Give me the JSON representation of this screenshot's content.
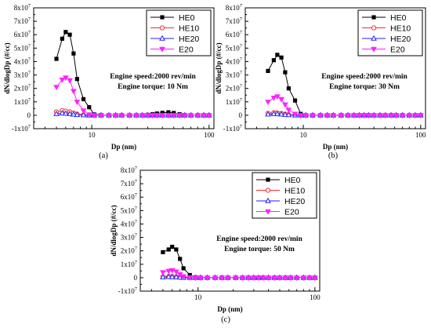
{
  "chart_data": [
    {
      "type": "line",
      "label": "(a)",
      "annotation": [
        "Engine speed:2000 rev/min",
        "Engine torque: 10 Nm"
      ],
      "xlabel": "Dp (nm)",
      "ylabel": "dN/dlogDp (#/cc)",
      "xscale": "log",
      "xlim": [
        3.2,
        110
      ],
      "ylim": [
        -10000000,
        80000000
      ],
      "xticks": [
        {
          "value": 10,
          "label": "10"
        },
        {
          "value": 100,
          "label": "100"
        }
      ],
      "yticks": [
        {
          "mant": "-1x10",
          "exp": "7",
          "value": -10000000
        },
        {
          "mant": "0",
          "exp": "",
          "value": 0
        },
        {
          "mant": "1x10",
          "exp": "7",
          "value": 10000000
        },
        {
          "mant": "2x10",
          "exp": "7",
          "value": 20000000
        },
        {
          "mant": "3x10",
          "exp": "7",
          "value": 30000000
        },
        {
          "mant": "4x10",
          "exp": "7",
          "value": 40000000
        },
        {
          "mant": "5x10",
          "exp": "7",
          "value": 50000000
        },
        {
          "mant": "6x10",
          "exp": "7",
          "value": 60000000
        },
        {
          "mant": "7x10",
          "exp": "7",
          "value": 70000000
        },
        {
          "mant": "8x10",
          "exp": "7",
          "value": 80000000
        }
      ],
      "legend_position": "top-right",
      "series": [
        {
          "name": "HE0",
          "color": "#000000",
          "marker": "square",
          "x": [
            5.0,
            5.6,
            6.0,
            6.5,
            7.0,
            7.5,
            8.5,
            9.5,
            10.5,
            12,
            14,
            16,
            18,
            21,
            24,
            27,
            30,
            33,
            36,
            40,
            45,
            50,
            56,
            62,
            70,
            80,
            90,
            100
          ],
          "y": [
            42000000,
            57000000,
            62000000,
            60000000,
            46000000,
            27000000,
            12000000,
            6000000,
            600000,
            150000,
            0,
            0,
            0,
            0,
            0,
            0,
            300000,
            800000,
            1300000,
            1800000,
            2200000,
            1700000,
            800000,
            200000,
            0,
            0,
            0,
            0
          ]
        },
        {
          "name": "HE10",
          "color": "#ff2a2a",
          "marker": "circle",
          "x": [
            5.0,
            5.6,
            6.0,
            6.5,
            7.0,
            7.5,
            8.5,
            9.5,
            10.5,
            12,
            14,
            16,
            18,
            21,
            24,
            27,
            30,
            33,
            36,
            40,
            45,
            50,
            56,
            62,
            70,
            80,
            90,
            100
          ],
          "y": [
            2500000,
            3500000,
            3200000,
            2600000,
            1700000,
            900000,
            400000,
            100000,
            0,
            0,
            0,
            0,
            0,
            0,
            0,
            0,
            0,
            0,
            0,
            0,
            0,
            0,
            0,
            0,
            0,
            0,
            0,
            0
          ]
        },
        {
          "name": "HE20",
          "color": "#2222ff",
          "marker": "triangle-up",
          "x": [
            5.0,
            5.6,
            6.0,
            6.5,
            7.0,
            7.5,
            8.5,
            9.5,
            10.5,
            12,
            14,
            16,
            18,
            21,
            24,
            27,
            30,
            33,
            36,
            40,
            45,
            50,
            56,
            62,
            70,
            80,
            90,
            100
          ],
          "y": [
            1000000,
            1500000,
            1300000,
            1000000,
            600000,
            300000,
            100000,
            0,
            0,
            0,
            0,
            0,
            0,
            0,
            0,
            0,
            0,
            0,
            0,
            0,
            0,
            0,
            0,
            0,
            0,
            0,
            0,
            0
          ]
        },
        {
          "name": "E20",
          "color": "#ff22ff",
          "marker": "triangle-down",
          "x": [
            5.0,
            5.6,
            6.0,
            6.5,
            7.0,
            7.5,
            8.5,
            9.5,
            10.5,
            12,
            14,
            16,
            18,
            21,
            24,
            27,
            30,
            33,
            36,
            40,
            45,
            50,
            56,
            62,
            70,
            80,
            90,
            100
          ],
          "y": [
            21000000,
            26500000,
            28000000,
            26000000,
            18000000,
            10000000,
            3500000,
            500000,
            0,
            0,
            0,
            0,
            0,
            0,
            0,
            0,
            0,
            0,
            0,
            0,
            0,
            0,
            0,
            0,
            0,
            0,
            0,
            0
          ]
        }
      ]
    },
    {
      "type": "line",
      "label": "(b)",
      "annotation": [
        "Engine speed:2000 rev/min",
        "Engine torque: 30 Nm"
      ],
      "xlabel": "Dp (nm)",
      "ylabel": "dN/dlogDp (#/cc)",
      "xscale": "log",
      "xlim": [
        3.2,
        110
      ],
      "ylim": [
        -10000000,
        80000000
      ],
      "xticks": [
        {
          "value": 10,
          "label": "10"
        },
        {
          "value": 100,
          "label": "100"
        }
      ],
      "yticks": [
        {
          "mant": "-1x10",
          "exp": "7",
          "value": -10000000
        },
        {
          "mant": "0",
          "exp": "",
          "value": 0
        },
        {
          "mant": "1x10",
          "exp": "7",
          "value": 10000000
        },
        {
          "mant": "2x10",
          "exp": "7",
          "value": 20000000
        },
        {
          "mant": "3x10",
          "exp": "7",
          "value": 30000000
        },
        {
          "mant": "4x10",
          "exp": "7",
          "value": 40000000
        },
        {
          "mant": "5x10",
          "exp": "7",
          "value": 50000000
        },
        {
          "mant": "6x10",
          "exp": "7",
          "value": 60000000
        },
        {
          "mant": "7x10",
          "exp": "7",
          "value": 70000000
        },
        {
          "mant": "8x10",
          "exp": "7",
          "value": 80000000
        }
      ],
      "legend_position": "top-right",
      "series": [
        {
          "name": "HE0",
          "color": "#000000",
          "marker": "square",
          "x": [
            5.0,
            5.6,
            6.0,
            6.5,
            7.0,
            7.5,
            8.5,
            9.5,
            10.5,
            12,
            14,
            16,
            18,
            21,
            24,
            27,
            30,
            33,
            36,
            40,
            45,
            50,
            56,
            62,
            70,
            80,
            90,
            100
          ],
          "y": [
            33000000,
            41000000,
            45000000,
            43000000,
            32000000,
            20000000,
            11000000,
            1000000,
            0,
            0,
            0,
            0,
            0,
            0,
            0,
            0,
            0,
            0,
            0,
            0,
            0,
            0,
            0,
            0,
            0,
            0,
            0,
            0
          ]
        },
        {
          "name": "HE10",
          "color": "#ff2a2a",
          "marker": "circle",
          "x": [
            5.0,
            5.6,
            6.0,
            6.5,
            7.0,
            7.5,
            8.5,
            9.5,
            10.5,
            12,
            14,
            16,
            18,
            21,
            24,
            27,
            30,
            33,
            36,
            40,
            45,
            50,
            56,
            62,
            70,
            80,
            90,
            100
          ],
          "y": [
            1500000,
            2000000,
            1800000,
            1400000,
            900000,
            500000,
            200000,
            0,
            0,
            0,
            0,
            0,
            0,
            0,
            0,
            0,
            0,
            0,
            0,
            0,
            0,
            0,
            0,
            0,
            0,
            0,
            0,
            0
          ]
        },
        {
          "name": "HE20",
          "color": "#2222ff",
          "marker": "triangle-up",
          "x": [
            5.0,
            5.6,
            6.0,
            6.5,
            7.0,
            7.5,
            8.5,
            9.5,
            10.5,
            12,
            14,
            16,
            18,
            21,
            24,
            27,
            30,
            33,
            36,
            40,
            45,
            50,
            56,
            62,
            70,
            80,
            90,
            100
          ],
          "y": [
            700000,
            1000000,
            900000,
            700000,
            400000,
            200000,
            0,
            0,
            0,
            0,
            0,
            0,
            0,
            0,
            0,
            0,
            0,
            0,
            0,
            0,
            0,
            0,
            0,
            0,
            0,
            0,
            0,
            0
          ]
        },
        {
          "name": "E20",
          "color": "#ff22ff",
          "marker": "triangle-down",
          "x": [
            5.0,
            5.6,
            6.0,
            6.5,
            7.0,
            7.5,
            8.5,
            9.5,
            10.5,
            12,
            14,
            16,
            18,
            21,
            24,
            27,
            30,
            33,
            36,
            40,
            45,
            50,
            56,
            62,
            70,
            80,
            90,
            100
          ],
          "y": [
            10000000,
            13000000,
            14000000,
            12000000,
            8000000,
            4000000,
            1000000,
            0,
            0,
            0,
            0,
            0,
            0,
            0,
            0,
            0,
            0,
            0,
            0,
            0,
            0,
            0,
            0,
            0,
            0,
            0,
            0,
            0
          ]
        }
      ]
    },
    {
      "type": "line",
      "label": "(c)",
      "annotation": [
        "Engine speed:2000 rev/min",
        "Engine torque: 50 Nm"
      ],
      "xlabel": "Dp (nm)",
      "ylabel": "dN/dlogDp (#/cc)",
      "xscale": "log",
      "xlim": [
        3.2,
        110
      ],
      "ylim": [
        -10000000,
        80000000
      ],
      "xticks": [
        {
          "value": 10,
          "label": "10"
        },
        {
          "value": 100,
          "label": "100"
        }
      ],
      "yticks": [
        {
          "mant": "-1x10",
          "exp": "7",
          "value": -10000000
        },
        {
          "mant": "0",
          "exp": "",
          "value": 0
        },
        {
          "mant": "1x10",
          "exp": "7",
          "value": 10000000
        },
        {
          "mant": "2x10",
          "exp": "7",
          "value": 20000000
        },
        {
          "mant": "3x10",
          "exp": "7",
          "value": 30000000
        },
        {
          "mant": "4x10",
          "exp": "7",
          "value": 40000000
        },
        {
          "mant": "5x10",
          "exp": "7",
          "value": 50000000
        },
        {
          "mant": "6x10",
          "exp": "7",
          "value": 60000000
        },
        {
          "mant": "7x10",
          "exp": "7",
          "value": 70000000
        },
        {
          "mant": "8x10",
          "exp": "7",
          "value": 80000000
        }
      ],
      "legend_position": "top-right",
      "series": [
        {
          "name": "HE0",
          "color": "#000000",
          "marker": "square",
          "x": [
            5.0,
            5.6,
            6.0,
            6.5,
            7.0,
            7.5,
            8.5,
            9.5,
            10.5,
            12,
            14,
            16,
            18,
            21,
            24,
            27,
            30,
            33,
            36,
            40,
            45,
            50,
            56,
            62,
            70,
            80,
            90,
            100
          ],
          "y": [
            19000000,
            21000000,
            23000000,
            21000000,
            14000000,
            7000000,
            2000000,
            300000,
            0,
            0,
            0,
            0,
            0,
            0,
            0,
            0,
            0,
            0,
            0,
            0,
            0,
            0,
            0,
            0,
            0,
            0,
            0,
            0
          ]
        },
        {
          "name": "HE10",
          "color": "#ff2a2a",
          "marker": "circle",
          "x": [
            5.0,
            5.6,
            6.0,
            6.5,
            7.0,
            7.5,
            8.5,
            9.5,
            10.5,
            12,
            14,
            16,
            18,
            21,
            24,
            27,
            30,
            33,
            36,
            40,
            45,
            50,
            56,
            62,
            70,
            80,
            90,
            100
          ],
          "y": [
            800000,
            1000000,
            900000,
            700000,
            400000,
            200000,
            0,
            0,
            0,
            0,
            0,
            0,
            0,
            0,
            0,
            0,
            0,
            0,
            0,
            0,
            0,
            0,
            0,
            0,
            0,
            0,
            0,
            0
          ]
        },
        {
          "name": "HE20",
          "color": "#2222ff",
          "marker": "triangle-up",
          "x": [
            5.0,
            5.6,
            6.0,
            6.5,
            7.0,
            7.5,
            8.5,
            9.5,
            10.5,
            12,
            14,
            16,
            18,
            21,
            24,
            27,
            30,
            33,
            36,
            40,
            45,
            50,
            56,
            62,
            70,
            80,
            90,
            100
          ],
          "y": [
            400000,
            600000,
            500000,
            400000,
            200000,
            0,
            0,
            0,
            0,
            0,
            0,
            0,
            0,
            0,
            0,
            0,
            0,
            0,
            0,
            0,
            0,
            0,
            0,
            0,
            0,
            0,
            0,
            0
          ]
        },
        {
          "name": "E20",
          "color": "#ff22ff",
          "marker": "triangle-down",
          "x": [
            5.0,
            5.6,
            6.0,
            6.5,
            7.0,
            7.5,
            8.5,
            9.5,
            10.5,
            12,
            14,
            16,
            18,
            21,
            24,
            27,
            30,
            33,
            36,
            40,
            45,
            50,
            56,
            62,
            70,
            80,
            90,
            100
          ],
          "y": [
            4000000,
            5000000,
            5500000,
            4500000,
            2500000,
            1000000,
            200000,
            0,
            0,
            0,
            0,
            0,
            0,
            0,
            0,
            0,
            0,
            0,
            0,
            0,
            0,
            0,
            0,
            0,
            0,
            0,
            0,
            0
          ]
        }
      ]
    }
  ]
}
